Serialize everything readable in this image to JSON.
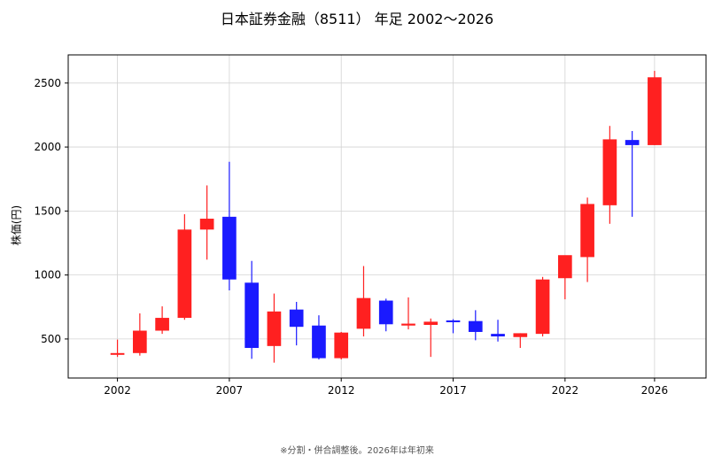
{
  "chart_data": {
    "type": "candlestick",
    "title": "日本証券金融（8511） 年足 2002〜2026",
    "ylabel": "株価(円)",
    "xlabel": "",
    "footnote": "※分割・併合調整後。2026年は年初来",
    "x_ticks": [
      "2002",
      "2007",
      "2012",
      "2017",
      "2022",
      "2026"
    ],
    "y_ticks": [
      "500",
      "1000",
      "1500",
      "2000",
      "2500"
    ],
    "xlim": [
      1999.8,
      2028.3
    ],
    "ylim": [
      195,
      2720
    ],
    "grid": true,
    "up_color": "#ff2020",
    "down_color": "#1a1aff",
    "candles": [
      {
        "year": 2002,
        "open": 385,
        "high": 495,
        "low": 360,
        "close": 390
      },
      {
        "year": 2003,
        "open": 390,
        "high": 700,
        "low": 370,
        "close": 565
      },
      {
        "year": 2004,
        "open": 565,
        "high": 755,
        "low": 540,
        "close": 665
      },
      {
        "year": 2005,
        "open": 665,
        "high": 1475,
        "low": 650,
        "close": 1355
      },
      {
        "year": 2006,
        "open": 1355,
        "high": 1700,
        "low": 1120,
        "close": 1440
      },
      {
        "year": 2007,
        "open": 1455,
        "high": 1885,
        "low": 880,
        "close": 965
      },
      {
        "year": 2008,
        "open": 940,
        "high": 1110,
        "low": 345,
        "close": 430
      },
      {
        "year": 2009,
        "open": 445,
        "high": 855,
        "low": 315,
        "close": 715
      },
      {
        "year": 2010,
        "open": 730,
        "high": 790,
        "low": 450,
        "close": 595
      },
      {
        "year": 2011,
        "open": 605,
        "high": 685,
        "low": 340,
        "close": 350
      },
      {
        "year": 2012,
        "open": 350,
        "high": 555,
        "low": 340,
        "close": 550
      },
      {
        "year": 2013,
        "open": 580,
        "high": 1070,
        "low": 520,
        "close": 820
      },
      {
        "year": 2014,
        "open": 800,
        "high": 815,
        "low": 560,
        "close": 615
      },
      {
        "year": 2015,
        "open": 605,
        "high": 825,
        "low": 575,
        "close": 620
      },
      {
        "year": 2016,
        "open": 610,
        "high": 660,
        "low": 360,
        "close": 635
      },
      {
        "year": 2017,
        "open": 645,
        "high": 655,
        "low": 545,
        "close": 635
      },
      {
        "year": 2018,
        "open": 640,
        "high": 725,
        "low": 490,
        "close": 555
      },
      {
        "year": 2019,
        "open": 540,
        "high": 650,
        "low": 480,
        "close": 520
      },
      {
        "year": 2020,
        "open": 515,
        "high": 545,
        "low": 430,
        "close": 545
      },
      {
        "year": 2021,
        "open": 540,
        "high": 985,
        "low": 520,
        "close": 965
      },
      {
        "year": 2022,
        "open": 975,
        "high": 1150,
        "low": 810,
        "close": 1155
      },
      {
        "year": 2023,
        "open": 1140,
        "high": 1605,
        "low": 945,
        "close": 1555
      },
      {
        "year": 2024,
        "open": 1545,
        "high": 2165,
        "low": 1400,
        "close": 2060
      },
      {
        "year": 2025,
        "open": 2055,
        "high": 2125,
        "low": 1455,
        "close": 2015
      },
      {
        "year": 2026,
        "open": 2015,
        "high": 2595,
        "low": 2015,
        "close": 2545
      }
    ]
  }
}
